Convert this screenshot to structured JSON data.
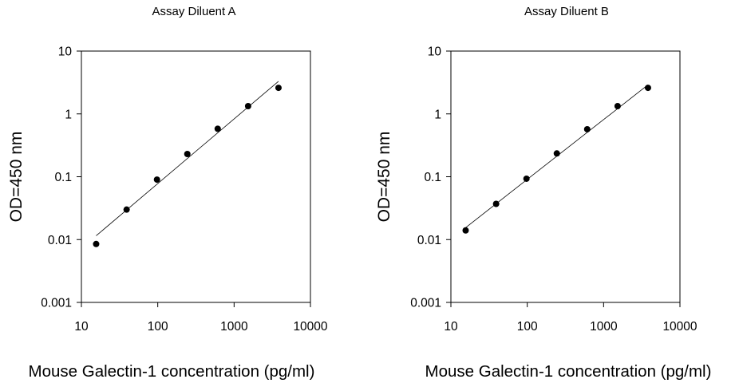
{
  "chart_data": [
    {
      "type": "scatter",
      "title": "Assay Diluent A",
      "xlabel": "Mouse Galectin-1 concentration (pg/ml)",
      "ylabel": "OD=450 nm",
      "xscale": "log",
      "yscale": "log",
      "xlim": [
        10,
        10000
      ],
      "ylim": [
        0.001,
        10
      ],
      "xticks": [
        "10",
        "100",
        "1000",
        "10000"
      ],
      "yticks": [
        "10",
        "1",
        "0.1",
        "0.01",
        "0.001"
      ],
      "grid": false,
      "series": [
        {
          "x": [
            15.6,
            39.1,
            97.7,
            244,
            610,
            1526,
            3815
          ],
          "y": [
            0.0085,
            0.03,
            0.09,
            0.23,
            0.58,
            1.33,
            2.6
          ]
        }
      ],
      "fit_line": {
        "x": [
          15.6,
          3815
        ],
        "y": [
          0.0115,
          3.3
        ]
      }
    },
    {
      "type": "scatter",
      "title": "Assay Diluent B",
      "xlabel": "Mouse Galectin-1 concentration (pg/ml)",
      "ylabel": "OD=450 nm",
      "xscale": "log",
      "yscale": "log",
      "xlim": [
        10,
        10000
      ],
      "ylim": [
        0.001,
        10
      ],
      "xticks": [
        "10",
        "100",
        "1000",
        "10000"
      ],
      "yticks": [
        "10",
        "1",
        "0.1",
        "0.01",
        "0.001"
      ],
      "grid": false,
      "series": [
        {
          "x": [
            15.6,
            39.1,
            97.7,
            244,
            610,
            1526,
            3815
          ],
          "y": [
            0.014,
            0.037,
            0.093,
            0.235,
            0.57,
            1.33,
            2.6
          ]
        }
      ],
      "fit_line": {
        "x": [
          15.6,
          3815
        ],
        "y": [
          0.0155,
          2.9
        ]
      }
    }
  ]
}
